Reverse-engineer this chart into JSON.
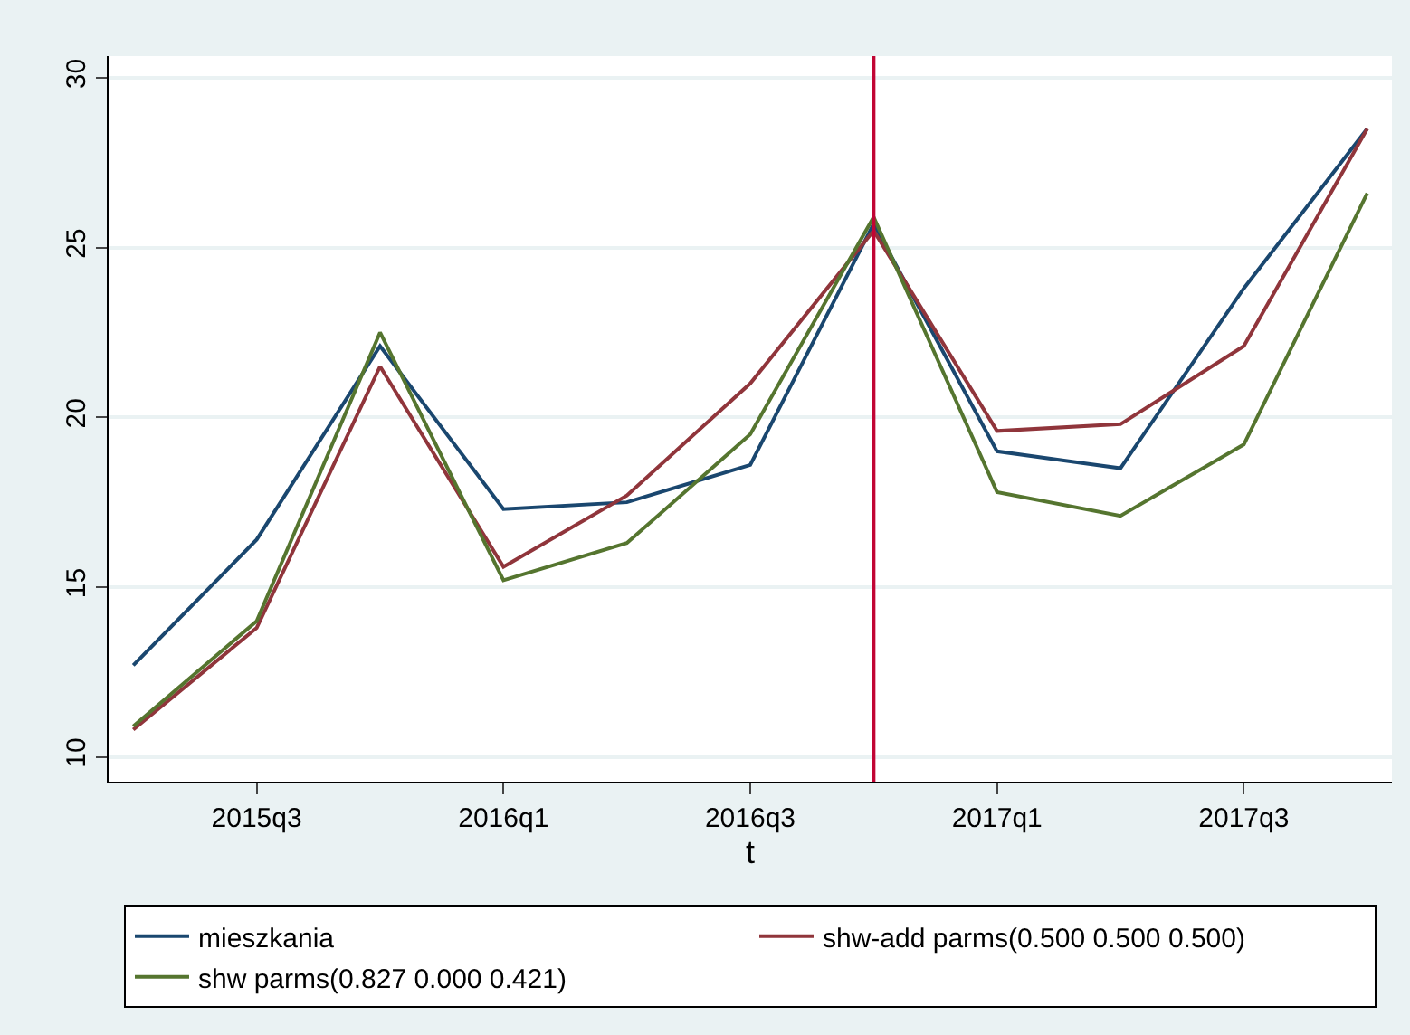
{
  "chart_data": {
    "type": "line",
    "xlabel": "t",
    "categories": [
      null,
      "2015q3",
      null,
      "2016q1",
      null,
      "2016q3",
      null,
      "2017q1",
      null,
      "2017q3",
      null
    ],
    "ylim": [
      9.27,
      30.64
    ],
    "yticks": [
      10,
      15,
      20,
      25,
      30
    ],
    "series": [
      {
        "name": "mieszkania",
        "color": "#1a476f",
        "values": [
          12.7,
          16.4,
          22.1,
          17.3,
          17.5,
          18.6,
          25.7,
          19.0,
          18.5,
          23.8,
          28.5
        ]
      },
      {
        "name": "shw-add parms(0.500 0.500 0.500)",
        "color": "#90353b",
        "values": [
          10.8,
          13.8,
          21.5,
          15.6,
          17.7,
          21.0,
          25.5,
          19.6,
          19.8,
          22.1,
          28.5
        ]
      },
      {
        "name": "shw parms(0.827 0.000 0.421)",
        "color": "#55752f",
        "values": [
          10.9,
          14.0,
          22.5,
          15.2,
          16.3,
          19.5,
          25.9,
          17.8,
          17.1,
          19.2,
          26.6
        ]
      }
    ],
    "grid": "y",
    "legend": "bottom",
    "marker": "none",
    "line_style": "solid"
  }
}
